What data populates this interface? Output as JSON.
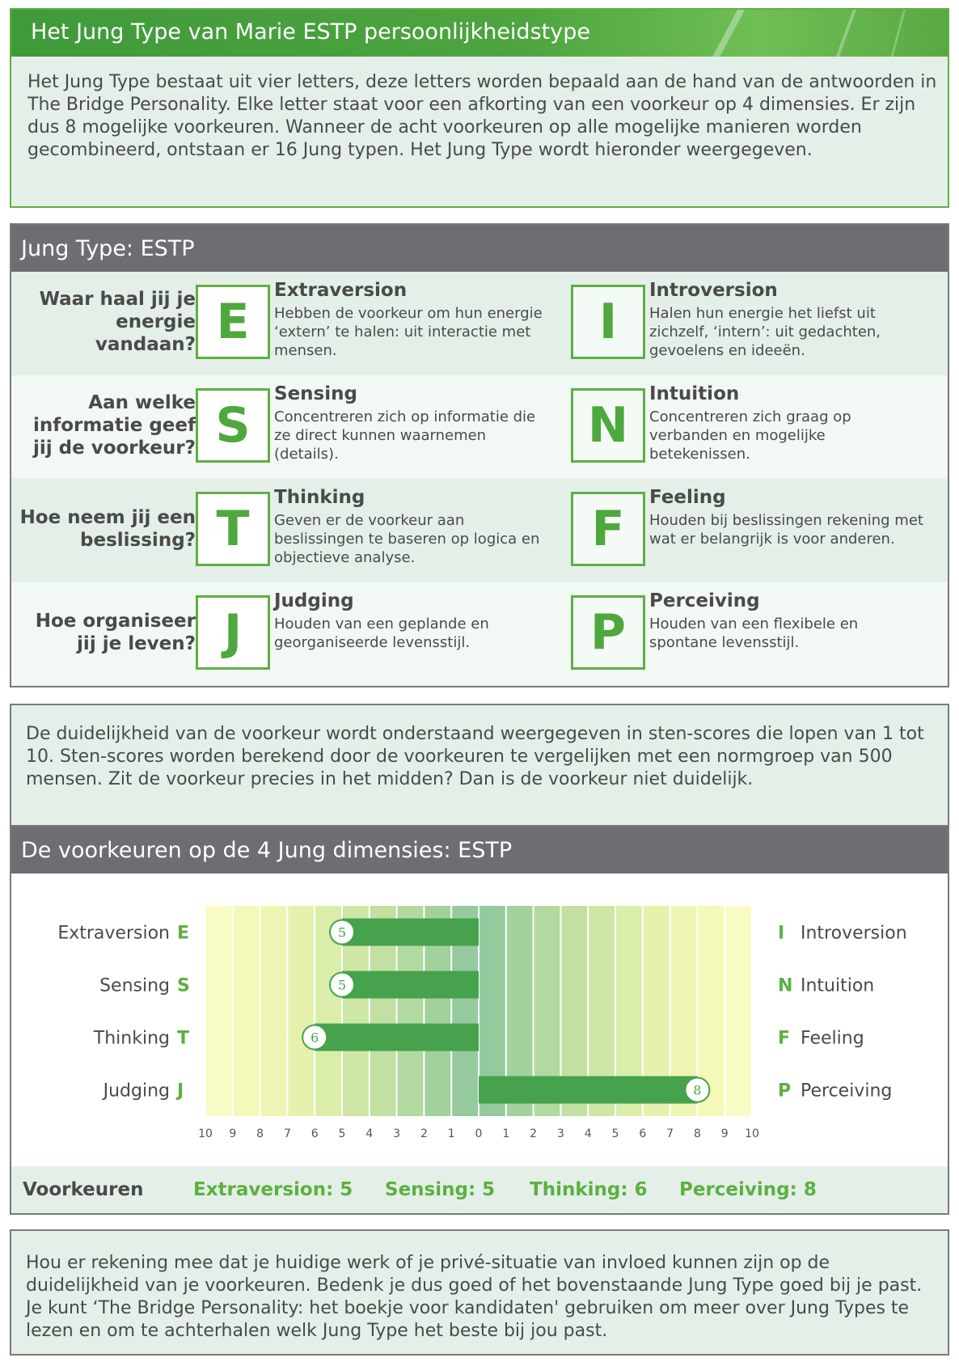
{
  "intro": {
    "title": "Het Jung Type van Marie ESTP persoonlijkheidstype",
    "text": "Het Jung Type bestaat uit vier letters, deze letters worden bepaald aan de hand van de antwoorden in The Bridge Personality. Elke letter staat voor een afkorting van een voorkeur op 4 dimensies. Er zijn dus 8 mogelijke voorkeuren. Wanneer de acht voorkeuren op alle mogelijke manieren worden gecombineerd, ontstaan er 16 Jung typen. Het Jung Type wordt hieronder weergegeven."
  },
  "jung": {
    "title": "Jung Type: ESTP",
    "rows": [
      {
        "question": "Waar haal jij je energie vandaan?",
        "left": {
          "letter": "E",
          "name": "Extraversion",
          "desc": "Hebben de voorkeur om hun energie ‘extern’ te halen: uit interactie met mensen."
        },
        "right": {
          "letter": "I",
          "name": "Introversion",
          "desc": "Halen hun energie het liefst uit zichzelf, ‘intern’: uit gedachten, gevoelens en ideeën."
        }
      },
      {
        "question": "Aan welke informatie geef jij de voorkeur?",
        "left": {
          "letter": "S",
          "name": "Sensing",
          "desc": "Concentreren zich op informatie die ze direct kunnen waarnemen (details)."
        },
        "right": {
          "letter": "N",
          "name": "Intuition",
          "desc": "Concentreren zich graag op verbanden en mogelijke betekenissen."
        }
      },
      {
        "question": "Hoe neem jij een beslissing?",
        "left": {
          "letter": "T",
          "name": "Thinking",
          "desc": "Geven er de voorkeur aan beslissingen te baseren op logica en objectieve analyse."
        },
        "right": {
          "letter": "F",
          "name": "Feeling",
          "desc": "Houden bij beslissingen rekening met wat er belangrijk is voor anderen."
        }
      },
      {
        "question": "Hoe organiseer jij je leven?",
        "left": {
          "letter": "J",
          "name": "Judging",
          "desc": "Houden van een geplande en georganiseerde levensstijl."
        },
        "right": {
          "letter": "P",
          "name": "Perceiving",
          "desc": "Houden van een flexibele en spontane levensstijl."
        }
      }
    ]
  },
  "sten": {
    "text": "De duidelijkheid van de voorkeur wordt onderstaand weergegeven in sten-scores die lopen van 1 tot 10. Sten-scores worden berekend door de voorkeuren te vergelijken met een normgroep van 500 mensen. Zit de voorkeur precies in het midden? Dan is de voorkeur niet duidelijk."
  },
  "preferences": {
    "title": "De voorkeuren op de 4 Jung dimensies: ESTP",
    "footer_label": "Voorkeuren",
    "footer_items": [
      "Extraversion: 5",
      "Sensing: 5",
      "Thinking: 6",
      "Perceiving: 8"
    ]
  },
  "chart_data": {
    "type": "bar",
    "orientation": "horizontal-diverging",
    "categories": [
      {
        "left_name": "Extraversion",
        "left_letter": "E",
        "right_letter": "I",
        "right_name": "Introversion"
      },
      {
        "left_name": "Sensing",
        "left_letter": "S",
        "right_letter": "N",
        "right_name": "Intuition"
      },
      {
        "left_name": "Thinking",
        "left_letter": "T",
        "right_letter": "F",
        "right_name": "Feeling"
      },
      {
        "left_name": "Judging",
        "left_letter": "J",
        "right_letter": "P",
        "right_name": "Perceiving"
      }
    ],
    "values": [
      -5,
      -5,
      -6,
      8
    ],
    "xlim": [
      -10,
      10
    ],
    "xticks": [
      "10",
      "9",
      "8",
      "7",
      "6",
      "5",
      "4",
      "3",
      "2",
      "1",
      "0",
      "1",
      "2",
      "3",
      "4",
      "5",
      "6",
      "7",
      "8",
      "9",
      "10"
    ],
    "bar_color": "#46a24d",
    "grid": true
  },
  "note": {
    "text": "Hou er rekening mee dat je huidige werk of je privé-situatie van invloed kunnen zijn op de duidelijkheid van je voorkeuren. Bedenk je dus goed of het bovenstaande Jung Type goed bij je past. Je kunt ‘The Bridge Personality: het boekje voor kandidaten' gebruiken om meer over Jung Types te lezen en om te achterhalen welk Jung Type het beste bij jou past."
  }
}
